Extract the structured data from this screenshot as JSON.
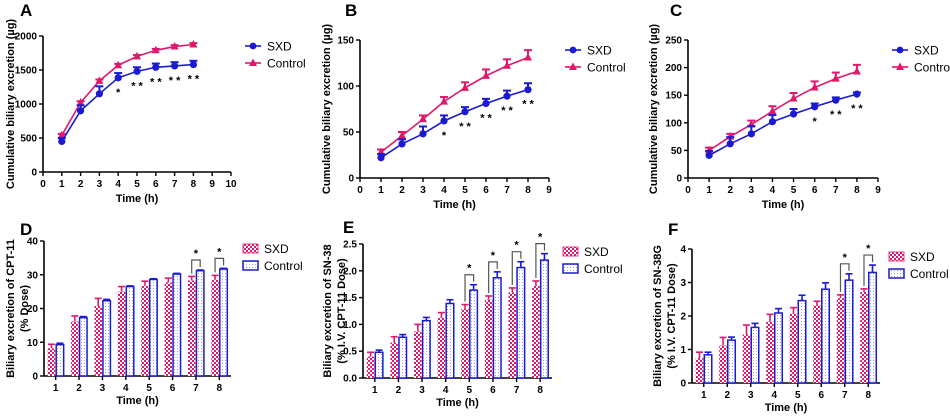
{
  "colors": {
    "sxd": "#1a1ad0",
    "control": "#e0186c",
    "axis": "#000000",
    "bracket": "#555555"
  },
  "chart_data": [
    {
      "panel": "A",
      "type": "line",
      "title": "",
      "xlabel": "Time (h)",
      "ylabel": "Cumulative biliary excretion (µg)",
      "xlim": [
        0,
        10
      ],
      "ylim": [
        0,
        2000
      ],
      "xticks": [
        "0",
        "1",
        "2",
        "3",
        "4",
        "5",
        "6",
        "7",
        "8",
        "9",
        "10"
      ],
      "yticks": [
        "0",
        "500",
        "1000",
        "1500",
        "2000"
      ],
      "x": [
        1,
        2,
        3,
        4,
        5,
        6,
        7,
        8
      ],
      "legend_position": "right",
      "series": [
        {
          "name": "SXD",
          "marker": "circle",
          "values": [
            450,
            900,
            1150,
            1385,
            1480,
            1540,
            1560,
            1580
          ],
          "err": [
            50,
            80,
            110,
            70,
            60,
            55,
            55,
            55
          ]
        },
        {
          "name": "Control",
          "marker": "triangle",
          "values": [
            540,
            1020,
            1340,
            1570,
            1700,
            1790,
            1845,
            1875
          ],
          "err": [
            20,
            20,
            20,
            20,
            20,
            20,
            20,
            20
          ]
        }
      ],
      "annotations": [
        {
          "x": 4,
          "text": "*"
        },
        {
          "x": 5,
          "text": "**"
        },
        {
          "x": 6,
          "text": "**"
        },
        {
          "x": 7,
          "text": "**"
        },
        {
          "x": 8,
          "text": "**"
        }
      ]
    },
    {
      "panel": "B",
      "type": "line",
      "title": "",
      "xlabel": "Time (h)",
      "ylabel": "Cumulative biliary excretion (µg)",
      "xlim": [
        0,
        9
      ],
      "ylim": [
        0,
        150
      ],
      "xticks": [
        "0",
        "1",
        "2",
        "3",
        "4",
        "5",
        "6",
        "7",
        "8",
        "9"
      ],
      "yticks": [
        "0",
        "50",
        "100",
        "150"
      ],
      "x": [
        1,
        2,
        3,
        4,
        5,
        6,
        7,
        8
      ],
      "legend_position": "right",
      "series": [
        {
          "name": "SXD",
          "marker": "circle",
          "values": [
            22,
            37,
            48,
            62,
            72,
            81,
            89,
            96
          ],
          "err": [
            4,
            5,
            8,
            6,
            5,
            5,
            6,
            7
          ]
        },
        {
          "name": "Control",
          "marker": "triangle",
          "values": [
            28,
            46,
            64,
            83,
            98,
            111,
            122,
            131
          ],
          "err": [
            3,
            4,
            4,
            5,
            6,
            7,
            7,
            8
          ]
        }
      ],
      "annotations": [
        {
          "x": 4,
          "text": "*"
        },
        {
          "x": 5,
          "text": "**"
        },
        {
          "x": 6,
          "text": "**"
        },
        {
          "x": 7,
          "text": "**"
        },
        {
          "x": 8,
          "text": "**"
        }
      ]
    },
    {
      "panel": "C",
      "type": "line",
      "title": "",
      "xlabel": "Time (h)",
      "ylabel": "Cumulative biliary excretion (µg)",
      "xlim": [
        0,
        9
      ],
      "ylim": [
        0,
        250
      ],
      "xticks": [
        "0",
        "1",
        "2",
        "3",
        "4",
        "5",
        "6",
        "7",
        "8",
        "9"
      ],
      "yticks": [
        "0",
        "50",
        "100",
        "150",
        "200",
        "250"
      ],
      "x": [
        1,
        2,
        3,
        4,
        5,
        6,
        7,
        8
      ],
      "legend_position": "right",
      "series": [
        {
          "name": "SXD",
          "marker": "circle",
          "values": [
            41,
            62,
            80,
            102,
            116,
            129,
            141,
            152
          ],
          "err": [
            8,
            12,
            14,
            12,
            9,
            6,
            5,
            3
          ]
        },
        {
          "name": "Control",
          "marker": "triangle",
          "values": [
            50,
            75,
            97,
            121,
            144,
            164,
            180,
            193
          ],
          "err": [
            5,
            5,
            7,
            9,
            10,
            11,
            11,
            12
          ]
        }
      ],
      "annotations": [
        {
          "x": 6,
          "text": "*"
        },
        {
          "x": 7,
          "text": "**"
        },
        {
          "x": 8,
          "text": "**"
        }
      ]
    },
    {
      "panel": "D",
      "type": "bar",
      "title": "",
      "xlabel": "Time (h)",
      "ylabel": "Biliary excretion of CPT-11 (% Dose)",
      "categories": [
        "1",
        "2",
        "3",
        "4",
        "5",
        "6",
        "7",
        "8"
      ],
      "ylim": [
        0,
        40
      ],
      "yticks": [
        "0",
        "10",
        "20",
        "30",
        "40"
      ],
      "legend_position": "right",
      "series": [
        {
          "name": "SXD",
          "values": [
            8.2,
            16.2,
            20.8,
            25.0,
            26.8,
            27.7,
            28.3,
            28.5
          ],
          "err": [
            1.2,
            1.6,
            2.2,
            1.5,
            1.3,
            1.3,
            1.2,
            1.3
          ]
        },
        {
          "name": "Control",
          "values": [
            9.3,
            17.3,
            22.3,
            26.5,
            28.6,
            30.2,
            31.2,
            31.7
          ],
          "err": [
            0.4,
            0.3,
            0.4,
            0.2,
            0.2,
            0.2,
            0.2,
            0.2
          ]
        }
      ],
      "annotations": [
        {
          "category": "7",
          "text": "*"
        },
        {
          "category": "8",
          "text": "*"
        }
      ]
    },
    {
      "panel": "E",
      "type": "bar",
      "title": "",
      "xlabel": "Time (h)",
      "ylabel": "Biliary excretion of SN-38 (% I.V. CPT-11 Dose)",
      "categories": [
        "1",
        "2",
        "3",
        "4",
        "5",
        "6",
        "7",
        "8"
      ],
      "ylim": [
        0,
        2.5
      ],
      "yticks": [
        "0.0",
        "0.5",
        "1.0",
        "1.5",
        "2.0",
        "2.5"
      ],
      "legend_position": "right",
      "series": [
        {
          "name": "SXD",
          "values": [
            0.4,
            0.66,
            0.87,
            1.12,
            1.29,
            1.46,
            1.6,
            1.72
          ],
          "err": [
            0.08,
            0.11,
            0.13,
            0.1,
            0.08,
            0.07,
            0.08,
            0.09
          ]
        },
        {
          "name": "Control",
          "values": [
            0.48,
            0.76,
            1.07,
            1.39,
            1.64,
            1.87,
            2.06,
            2.2
          ],
          "err": [
            0.04,
            0.05,
            0.06,
            0.07,
            0.1,
            0.11,
            0.11,
            0.12
          ]
        }
      ],
      "annotations": [
        {
          "category": "5",
          "text": "*"
        },
        {
          "category": "6",
          "text": "*"
        },
        {
          "category": "7",
          "text": "*"
        },
        {
          "category": "8",
          "text": "*"
        }
      ]
    },
    {
      "panel": "F",
      "type": "bar",
      "title": "",
      "xlabel": "Time (h)",
      "ylabel": "Biliary excretion of SN-38G (% I.V. CPT-11 Dose)",
      "categories": [
        "1",
        "2",
        "3",
        "4",
        "5",
        "6",
        "7",
        "8"
      ],
      "ylim": [
        0,
        4
      ],
      "yticks": [
        "0",
        "1",
        "2",
        "3",
        "4"
      ],
      "legend_position": "right",
      "series": [
        {
          "name": "SXD",
          "values": [
            0.74,
            1.12,
            1.45,
            1.83,
            2.07,
            2.32,
            2.53,
            2.72
          ],
          "err": [
            0.18,
            0.24,
            0.28,
            0.22,
            0.18,
            0.12,
            0.1,
            0.09
          ]
        },
        {
          "name": "Control",
          "values": [
            0.84,
            1.28,
            1.66,
            2.09,
            2.46,
            2.8,
            3.07,
            3.3
          ],
          "err": [
            0.08,
            0.09,
            0.12,
            0.13,
            0.16,
            0.19,
            0.19,
            0.22
          ]
        }
      ],
      "annotations": [
        {
          "category": "7",
          "text": "*"
        },
        {
          "category": "8",
          "text": "*"
        }
      ]
    }
  ]
}
